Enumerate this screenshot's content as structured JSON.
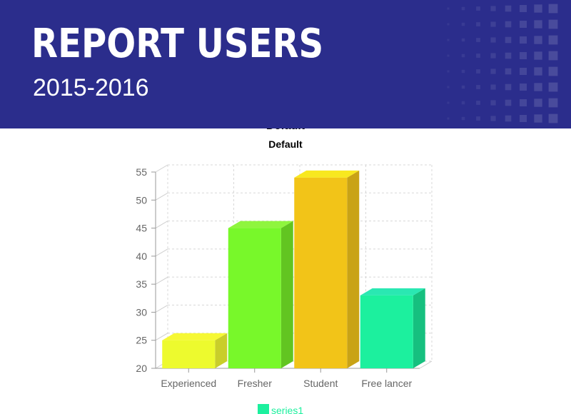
{
  "header": {
    "title": "REPORT USERS",
    "subtitle": "2015-2016"
  },
  "chart_data": {
    "type": "bar",
    "title": "Default",
    "subtitle": "Default",
    "categories": [
      "Experienced",
      "Fresher",
      "Student",
      "Free lancer"
    ],
    "series": [
      {
        "name": "series1",
        "values": [
          25,
          45,
          54,
          33
        ]
      }
    ],
    "ylim": [
      20,
      55
    ],
    "yticks": [
      20,
      25,
      30,
      35,
      40,
      45,
      50,
      55
    ],
    "grid": true,
    "legend": "bottom",
    "style": "3d",
    "bar_colors": [
      "#edfa2e",
      "#78f82a",
      "#f2c418",
      "#1cf09e"
    ],
    "bar_top_colors": [
      "#f6f834",
      "#8ff53e",
      "#f8e81f",
      "#2ae8b2"
    ],
    "bar_side_colors": [
      "#c9ce2a",
      "#62c521",
      "#c9a316",
      "#16c07f"
    ],
    "legend_color": "#1cf09e"
  }
}
